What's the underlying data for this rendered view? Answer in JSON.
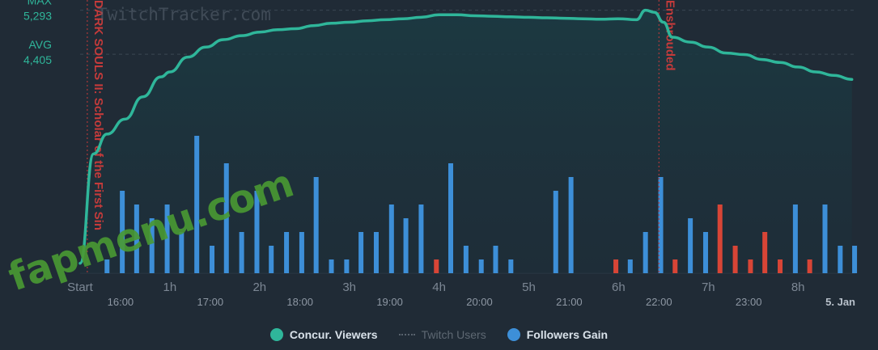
{
  "watermark": "TwitchTracker.com",
  "overlay_watermark": "fapmenu.com",
  "chart_data": {
    "type": "line+bar",
    "y_reference_labels": [
      {
        "name": "MAX",
        "value": "5,293"
      },
      {
        "name": "AVG",
        "value": "4,405"
      }
    ],
    "x_elapsed_ticks": [
      "Start",
      "1h",
      "2h",
      "3h",
      "4h",
      "5h",
      "6h",
      "7h",
      "8h"
    ],
    "x_clock_ticks": [
      "16:00",
      "17:00",
      "18:00",
      "19:00",
      "20:00",
      "21:00",
      "22:00",
      "23:00"
    ],
    "x_date_label": "5. Jan",
    "x_range_hours": [
      0,
      8.65
    ],
    "viewers": {
      "name": "Concur. Viewers",
      "color": "#2fb69a",
      "y_range": [
        0,
        5400
      ],
      "t": [
        0,
        0.15,
        0.3,
        0.5,
        0.7,
        0.9,
        1.0,
        1.2,
        1.4,
        1.6,
        1.8,
        2.0,
        2.2,
        2.4,
        2.6,
        2.8,
        3.0,
        3.2,
        3.4,
        3.6,
        3.8,
        4.0,
        4.2,
        4.4,
        4.6,
        4.8,
        5.0,
        5.2,
        5.4,
        5.6,
        5.8,
        6.0,
        6.2,
        6.3,
        6.4,
        6.5,
        6.6,
        6.8,
        7.0,
        7.2,
        7.4,
        7.6,
        7.8,
        8.0,
        8.2,
        8.4,
        8.6
      ],
      "values": [
        200,
        2400,
        2800,
        3100,
        3550,
        3950,
        4050,
        4350,
        4550,
        4700,
        4780,
        4850,
        4900,
        4920,
        4980,
        5030,
        5050,
        5080,
        5100,
        5120,
        5150,
        5200,
        5200,
        5180,
        5170,
        5160,
        5150,
        5140,
        5130,
        5120,
        5110,
        5120,
        5100,
        5293,
        5250,
        5050,
        4750,
        4650,
        4550,
        4430,
        4400,
        4300,
        4240,
        4150,
        4050,
        3980,
        3900
      ]
    },
    "twitch_users": {
      "name": "Twitch Users",
      "color": "#59636e",
      "visible": false
    },
    "followers_gain": {
      "name": "Followers Gain",
      "color_positive": "#3d8fd8",
      "color_negative": "#d84536",
      "y_range": [
        -10,
        10
      ],
      "t": [
        0.3,
        0.47,
        0.63,
        0.8,
        0.97,
        1.13,
        1.3,
        1.47,
        1.63,
        1.8,
        1.97,
        2.13,
        2.3,
        2.47,
        2.63,
        2.8,
        2.97,
        3.13,
        3.3,
        3.47,
        3.63,
        3.8,
        3.97,
        4.13,
        4.3,
        4.47,
        4.63,
        4.8,
        4.97,
        5.3,
        5.47,
        5.97,
        6.13,
        6.3,
        6.47,
        6.63,
        6.8,
        6.97,
        7.13,
        7.3,
        7.47,
        7.63,
        7.8,
        7.97,
        8.13,
        8.3,
        8.47,
        8.63
      ],
      "values": [
        1,
        6,
        5,
        4,
        5,
        3,
        10,
        2,
        8,
        3,
        6,
        2,
        3,
        3,
        7,
        1,
        1,
        3,
        3,
        5,
        4,
        5,
        -1,
        8,
        2,
        1,
        2,
        1,
        0,
        6,
        7,
        -1,
        1,
        3,
        7,
        -1,
        4,
        3,
        -5,
        -2,
        -1,
        -3,
        -1,
        5,
        -1,
        5,
        2,
        2
      ]
    },
    "game_markers": [
      {
        "label": "DARK SOULS II: Scholar of the First Sin",
        "t": 0.08
      },
      {
        "label": "Enshrouded",
        "t": 6.45
      }
    ]
  },
  "legend": [
    {
      "key": "viewers",
      "label": "Concur. Viewers",
      "color": "#2fb69a",
      "active": true
    },
    {
      "key": "twitch_users",
      "label": "Twitch Users",
      "color": "#59636e",
      "active": false
    },
    {
      "key": "followers",
      "label": "Followers Gain",
      "color": "#3d8fd8",
      "active": true
    }
  ]
}
